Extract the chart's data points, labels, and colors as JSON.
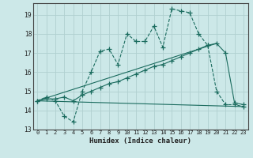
{
  "xlabel": "Humidex (Indice chaleur)",
  "bg_color": "#cce8e8",
  "grid_color": "#b0d0d0",
  "line_color": "#1a6b5e",
  "xlim": [
    -0.5,
    23.5
  ],
  "ylim": [
    13,
    19.6
  ],
  "yticks": [
    13,
    14,
    15,
    16,
    17,
    18,
    19
  ],
  "xticks": [
    0,
    1,
    2,
    3,
    4,
    5,
    6,
    7,
    8,
    9,
    10,
    11,
    12,
    13,
    14,
    15,
    16,
    17,
    18,
    19,
    20,
    21,
    22,
    23
  ],
  "series1_x": [
    0,
    1,
    2,
    3,
    4,
    5,
    6,
    7,
    8,
    9,
    10,
    11,
    12,
    13,
    14,
    15,
    16,
    17,
    18,
    19,
    20,
    21,
    22,
    23
  ],
  "series1_y": [
    14.5,
    14.7,
    14.5,
    13.7,
    13.4,
    15.0,
    16.0,
    17.1,
    17.2,
    16.4,
    18.0,
    17.6,
    17.6,
    18.4,
    17.3,
    19.3,
    19.2,
    19.1,
    18.0,
    17.4,
    15.0,
    14.3,
    14.3,
    14.2
  ],
  "series2_x": [
    0,
    1,
    2,
    3,
    4,
    5,
    6,
    7,
    8,
    9,
    10,
    11,
    12,
    13,
    14,
    15,
    16,
    17,
    18,
    19,
    20,
    21,
    22,
    23
  ],
  "series2_y": [
    14.5,
    14.6,
    14.6,
    14.7,
    14.5,
    14.8,
    15.0,
    15.2,
    15.4,
    15.5,
    15.7,
    15.9,
    16.1,
    16.3,
    16.4,
    16.6,
    16.8,
    17.0,
    17.2,
    17.4,
    17.5,
    17.0,
    14.4,
    14.3
  ],
  "series3_x": [
    0,
    20
  ],
  "series3_y": [
    14.5,
    17.5
  ],
  "series4_x": [
    0,
    23
  ],
  "series4_y": [
    14.5,
    14.2
  ]
}
